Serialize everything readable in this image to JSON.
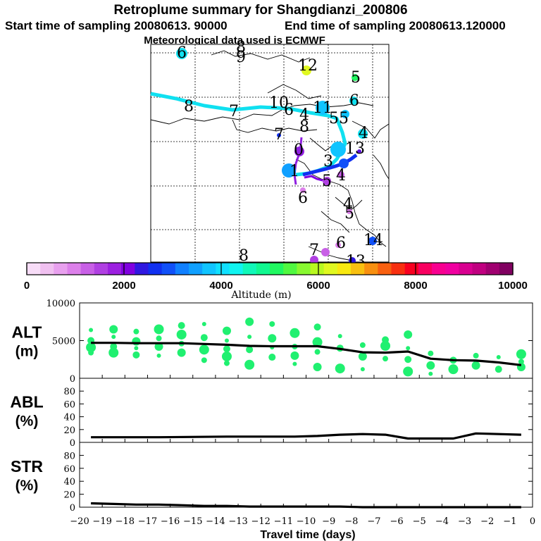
{
  "header": {
    "title": "Retroplume summary for Shangdianzi_200806",
    "start_label": "Start time of sampling 20080613. 90000",
    "end_label": "End time of sampling 20080613.120000",
    "met_label": "Meteorological data used is ECMWF"
  },
  "colorbar": {
    "ticks": [
      "0",
      "2000",
      "4000",
      "6000",
      "8000",
      "10000"
    ],
    "label": "Altitude (m)",
    "colors": [
      "#f7dcf7",
      "#f0c0f0",
      "#e8a0ee",
      "#dc80ea",
      "#c860e6",
      "#b040e2",
      "#9c20e0",
      "#8000e0",
      "#3018e0",
      "#1030f0",
      "#1050f8",
      "#1080ff",
      "#10a0ff",
      "#10c4ff",
      "#10e0ff",
      "#10f4f0",
      "#10f8b8",
      "#10f890",
      "#20f860",
      "#50f840",
      "#88f830",
      "#b8f820",
      "#e0f820",
      "#f8e810",
      "#f8c010",
      "#f89010",
      "#f86010",
      "#f83010",
      "#f80020",
      "#f80060",
      "#f80090",
      "#f000a0",
      "#d80090",
      "#c00080",
      "#a00070",
      "#800060"
    ]
  },
  "map": {
    "trajectory_numbers": [
      "6",
      "8",
      "9",
      "12",
      "5",
      "8",
      "7",
      "10",
      "6",
      "11",
      "5",
      "5",
      "6",
      "4",
      "8",
      "7",
      "4",
      "13",
      "0",
      "1",
      "3",
      "4",
      "5",
      "6",
      "4",
      "5",
      "14",
      "7",
      "6",
      "13",
      "8"
    ]
  },
  "chart_data": [
    {
      "type": "line",
      "name": "ALT",
      "ylabel": "ALT (m)",
      "ylabel_lines": [
        "ALT",
        "(m)"
      ],
      "ylim": [
        0,
        10000
      ],
      "yticks": [
        "0",
        "5000",
        "10000"
      ],
      "x": [
        -19.5,
        -18.5,
        -17.5,
        -16.5,
        -15.5,
        -14.5,
        -13.5,
        -12.5,
        -11.5,
        -10.5,
        -9.5,
        -8.5,
        -7.5,
        -6.5,
        -5.5,
        -4.5,
        -3.5,
        -2.5,
        -1.5,
        -0.5
      ],
      "series": [
        {
          "name": "mean altitude",
          "values": [
            4700,
            4700,
            4650,
            4650,
            4650,
            4550,
            4450,
            4300,
            4250,
            4250,
            4250,
            3900,
            3450,
            3400,
            3550,
            2600,
            2400,
            2350,
            2100,
            1750
          ]
        },
        {
          "name": "plume clusters",
          "points": [
            [
              -19.5,
              6400
            ],
            [
              -19.5,
              5000
            ],
            [
              -19.5,
              4100
            ],
            [
              -19.5,
              3400
            ],
            [
              -18.5,
              6500
            ],
            [
              -18.5,
              5500
            ],
            [
              -18.5,
              4200
            ],
            [
              -18.5,
              3400
            ],
            [
              -17.5,
              6200
            ],
            [
              -17.5,
              4900
            ],
            [
              -17.5,
              4000
            ],
            [
              -17.5,
              3100
            ],
            [
              -16.5,
              6500
            ],
            [
              -16.5,
              5300
            ],
            [
              -16.5,
              4200
            ],
            [
              -16.5,
              3000
            ],
            [
              -15.5,
              7000
            ],
            [
              -15.5,
              5800
            ],
            [
              -15.5,
              4600
            ],
            [
              -15.5,
              3400
            ],
            [
              -14.5,
              7200
            ],
            [
              -14.5,
              5400
            ],
            [
              -14.5,
              3800
            ],
            [
              -14.5,
              2400
            ],
            [
              -13.5,
              6300
            ],
            [
              -13.5,
              5000
            ],
            [
              -13.5,
              3900
            ],
            [
              -13.5,
              2900
            ],
            [
              -13.5,
              2000
            ],
            [
              -12.5,
              7500
            ],
            [
              -12.5,
              5500
            ],
            [
              -12.5,
              3800
            ],
            [
              -12.5,
              1800
            ],
            [
              -11.5,
              7200
            ],
            [
              -11.5,
              5300
            ],
            [
              -11.5,
              4100
            ],
            [
              -11.5,
              2800
            ],
            [
              -10.5,
              6000
            ],
            [
              -10.5,
              4200
            ],
            [
              -10.5,
              3000
            ],
            [
              -10.5,
              1900
            ],
            [
              -9.5,
              6800
            ],
            [
              -9.5,
              4800
            ],
            [
              -9.5,
              3500
            ],
            [
              -9.5,
              1500
            ],
            [
              -8.5,
              5600
            ],
            [
              -8.5,
              4000
            ],
            [
              -8.5,
              1300
            ],
            [
              -7.5,
              4400
            ],
            [
              -7.5,
              2900
            ],
            [
              -7.5,
              1200
            ],
            [
              -6.5,
              5100
            ],
            [
              -6.5,
              4300
            ],
            [
              -6.5,
              2600
            ],
            [
              -5.5,
              5800
            ],
            [
              -5.5,
              4000
            ],
            [
              -5.5,
              2500
            ],
            [
              -5.5,
              900
            ],
            [
              -4.5,
              3300
            ],
            [
              -4.5,
              1700
            ],
            [
              -4.5,
              600
            ],
            [
              -3.5,
              2400
            ],
            [
              -3.5,
              1200
            ],
            [
              -2.5,
              3000
            ],
            [
              -2.5,
              1700
            ],
            [
              -1.5,
              2800
            ],
            [
              -1.5,
              1200
            ],
            [
              -0.5,
              3200
            ],
            [
              -0.5,
              2200
            ],
            [
              -0.5,
              1500
            ]
          ]
        }
      ]
    },
    {
      "type": "line",
      "name": "ABL",
      "ylabel": "ABL (%)",
      "ylabel_lines": [
        "ABL",
        "(%)"
      ],
      "ylim": [
        0,
        100
      ],
      "yticks": [
        "0",
        "20",
        "40",
        "60",
        "80"
      ],
      "x": [
        -19.5,
        -16.5,
        -13.5,
        -10.5,
        -9.5,
        -8.5,
        -7.5,
        -6.5,
        -5.5,
        -4.5,
        -3.5,
        -2.5,
        -1.5,
        -0.5
      ],
      "series": [
        {
          "name": "ABL fraction",
          "values": [
            8,
            8,
            9,
            9,
            10,
            12,
            13,
            12,
            6,
            6,
            6,
            14,
            13,
            12
          ]
        }
      ]
    },
    {
      "type": "line",
      "name": "STR",
      "ylabel": "STR (%)",
      "ylabel_lines": [
        "STR",
        "(%)"
      ],
      "ylim": [
        0,
        100
      ],
      "yticks": [
        "0",
        "20",
        "40",
        "60",
        "80"
      ],
      "x": [
        -19.5,
        -18.5,
        -17.5,
        -16.5,
        -15.5,
        -14.5,
        -13.5,
        -12.5,
        -11.5,
        -10.5,
        -9.5,
        -8.5,
        -7.5,
        -6.5,
        -5.5,
        -4.5,
        -3.5,
        -2.5,
        -1.5,
        -0.5
      ],
      "series": [
        {
          "name": "stratospheric fraction",
          "values": [
            6,
            5,
            4,
            4,
            3,
            2,
            2,
            1,
            1,
            1,
            1,
            1,
            0,
            0,
            0,
            0,
            0,
            0,
            0,
            0
          ]
        }
      ]
    }
  ],
  "xaxis": {
    "label": "Travel time (days)",
    "ticks": [
      "-20",
      "-19",
      "-18",
      "-17",
      "-16",
      "-15",
      "-14",
      "-13",
      "-12",
      "-11",
      "-10",
      "-9",
      "-8",
      "-7",
      "-6",
      "-5",
      "-4",
      "-3",
      "-2",
      "-1",
      "0"
    ]
  }
}
